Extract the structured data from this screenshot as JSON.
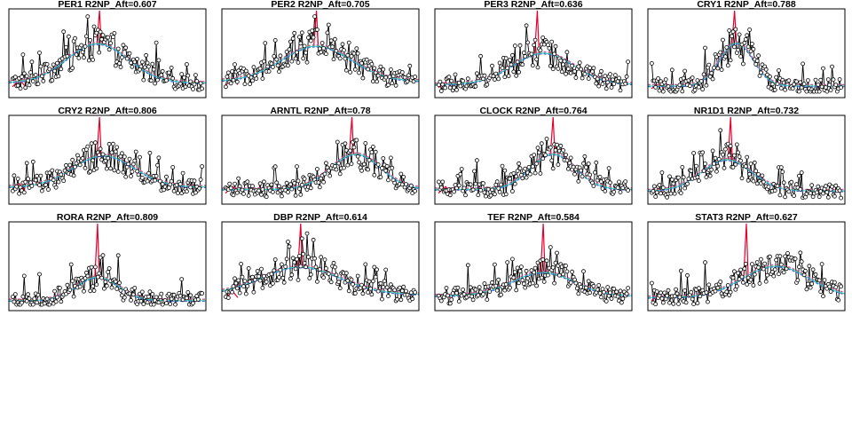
{
  "chart_data": [
    {
      "type": "line",
      "title": "PER1 R2NP_Aft=0.607",
      "grid": false,
      "axes_ticks_shown": false
    },
    {
      "type": "line",
      "title": "PER2 R2NP_Aft=0.705",
      "grid": false,
      "axes_ticks_shown": false
    },
    {
      "type": "line",
      "title": "PER3 R2NP_Aft=0.636",
      "grid": false,
      "axes_ticks_shown": false
    },
    {
      "type": "line",
      "title": "CRY1 R2NP_Aft=0.788",
      "grid": false,
      "axes_ticks_shown": false
    },
    {
      "type": "line",
      "title": "CRY2 R2NP_Aft=0.806",
      "grid": false,
      "axes_ticks_shown": false
    },
    {
      "type": "line",
      "title": "ARNTL R2NP_Aft=0.78",
      "grid": false,
      "axes_ticks_shown": false
    },
    {
      "type": "line",
      "title": "CLOCK R2NP_Aft=0.764",
      "grid": false,
      "axes_ticks_shown": false
    },
    {
      "type": "line",
      "title": "NR1D1 R2NP_Aft=0.732",
      "grid": false,
      "axes_ticks_shown": false
    },
    {
      "type": "line",
      "title": "RORA R2NP_Aft=0.809",
      "grid": false,
      "axes_ticks_shown": false
    },
    {
      "type": "line",
      "title": "DBP R2NP_Aft=0.614",
      "grid": false,
      "axes_ticks_shown": false
    },
    {
      "type": "line",
      "title": "TEF R2NP_Aft=0.584",
      "grid": false,
      "axes_ticks_shown": false
    },
    {
      "type": "line",
      "title": "STAT3 R2NP_Aft=0.627",
      "grid": false,
      "axes_ticks_shown": false
    }
  ],
  "colors": {
    "points": "#000000",
    "trace": "#000000",
    "highlight": "#e8002a",
    "fit_cyan": "#35c6c6",
    "fit_green": "#2e9e2e",
    "fit_blue": "#3a5fcd",
    "fit_pink": "#e34ab0"
  }
}
